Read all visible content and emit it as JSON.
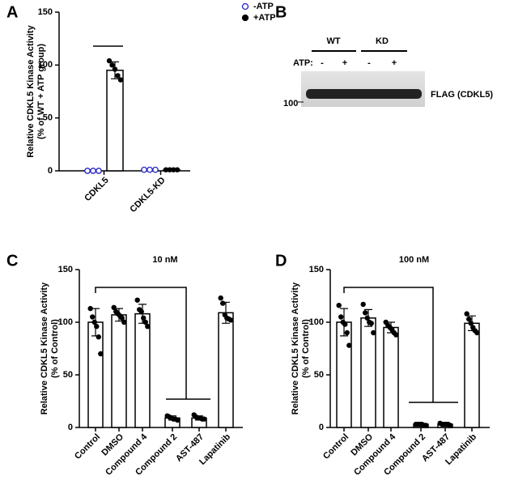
{
  "chart_data": [
    {
      "panel": "A",
      "type": "bar",
      "ylabel": [
        "Relative CDKL5 Kinase Activity",
        "(% of WT + ATP group)"
      ],
      "categories": [
        "CDKL5",
        "CDKL5-KD"
      ],
      "ylim": [
        0,
        150
      ],
      "yticks": [
        0,
        50,
        100,
        150
      ],
      "series": [
        {
          "name": "-ATP",
          "color": "#2323c8",
          "marker": "open",
          "values": [
            0,
            1
          ],
          "errors": [
            0,
            0
          ],
          "points": [
            [
              0,
              0,
              0
            ],
            [
              1,
              1,
              1
            ]
          ]
        },
        {
          "name": "+ATP",
          "color": "#000000",
          "marker": "filled",
          "values": [
            95,
            1
          ],
          "errors": [
            8,
            0
          ],
          "points": [
            [
              104,
              100,
              96,
              90,
              86
            ],
            [
              1,
              1,
              1,
              1
            ]
          ]
        }
      ]
    },
    {
      "panel": "C",
      "type": "bar",
      "title": "10 nM",
      "ylabel": [
        "Relative CDKL5 Kinase Activity",
        "(% of Control)"
      ],
      "categories": [
        "Control",
        "DMSO",
        "Compound 4",
        "Compound 2",
        "AST-487",
        "Lapatinib"
      ],
      "ylim": [
        0,
        150
      ],
      "yticks": [
        0,
        50,
        100,
        150
      ],
      "color": "#000000",
      "values": [
        100,
        107,
        108,
        9,
        9,
        109
      ],
      "errors": [
        13,
        6,
        9,
        2,
        2,
        10
      ],
      "points": [
        [
          113,
          105,
          100,
          96,
          86,
          70
        ],
        [
          114,
          110,
          108,
          106,
          104,
          100
        ],
        [
          121,
          112,
          110,
          104,
          100,
          96
        ],
        [
          11,
          10,
          9,
          8,
          8,
          7
        ],
        [
          12,
          10,
          9,
          9,
          8,
          8
        ],
        [
          123,
          118,
          107,
          104,
          103,
          102
        ]
      ]
    },
    {
      "panel": "D",
      "type": "bar",
      "title": "100 nM",
      "ylabel": [
        "Relative CDKL5 Kinase Activity",
        "(% of Control)"
      ],
      "categories": [
        "Control",
        "DMSO",
        "Compound 4",
        "Compound 2",
        "AST-487",
        "Lapatinib"
      ],
      "ylim": [
        0,
        150
      ],
      "yticks": [
        0,
        50,
        100,
        150
      ],
      "color": "#000000",
      "values": [
        100,
        104,
        95,
        3,
        3,
        99
      ],
      "errors": [
        13,
        8,
        5,
        1,
        1,
        7
      ],
      "points": [
        [
          116,
          105,
          100,
          98,
          90,
          78
        ],
        [
          117,
          109,
          104,
          100,
          99,
          90
        ],
        [
          100,
          97,
          95,
          93,
          90,
          88
        ],
        [
          3,
          3,
          3,
          3,
          2,
          2
        ],
        [
          4,
          3,
          3,
          3,
          3,
          2
        ],
        [
          108,
          103,
          99,
          95,
          92,
          90
        ]
      ]
    }
  ],
  "blot": {
    "panel": "B",
    "groups": [
      "WT",
      "KD"
    ],
    "atp_label": "ATP:",
    "lanes": [
      "-",
      "+",
      "-",
      "+"
    ],
    "marker": "100",
    "band_label": "FLAG (CDKL5)"
  }
}
